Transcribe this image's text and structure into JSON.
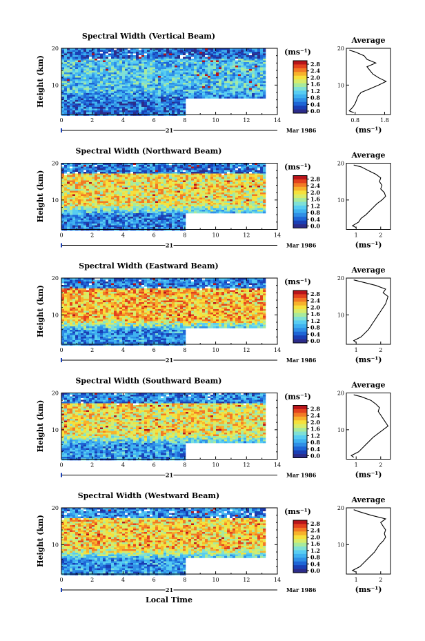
{
  "chart_data": [
    {
      "type": "heatmap",
      "title": "Spectral Width (Vertical Beam)",
      "ylabel": "Height (km)",
      "x_ticks": [
        "0",
        "2",
        "4",
        "6",
        "8",
        "10",
        "12",
        "14"
      ],
      "y_ticks": [
        "10",
        "20"
      ],
      "xlim": [
        0,
        14
      ],
      "ylim": [
        2,
        20
      ],
      "date_label": "21",
      "month_label": "Mar 1986",
      "colorbar": {
        "unit": "(ms⁻¹)",
        "ticks": [
          "2.8",
          "2.4",
          "2.0",
          "1.6",
          "1.2",
          "0.8",
          "0.4",
          "0.0"
        ]
      },
      "data_end_hours": 13.2,
      "low_gap_start_hours": 8,
      "low_gap_top_km": 6.5,
      "typical_width_low": 0.6,
      "typical_width_mid": 1.1,
      "average": {
        "title": "Average",
        "xlabel": "(ms⁻¹)",
        "x_ticks": [
          "0.8",
          "1.8"
        ],
        "xlim": [
          0.5,
          2.0
        ],
        "profile_heights": [
          2.5,
          3,
          4,
          5,
          6,
          7,
          8,
          9,
          10,
          11,
          12,
          13,
          14,
          15,
          16,
          17,
          18,
          19,
          19.5
        ],
        "profile_values": [
          0.75,
          0.6,
          0.72,
          0.8,
          0.85,
          0.9,
          1.0,
          1.3,
          1.6,
          1.85,
          1.6,
          1.4,
          1.3,
          1.2,
          1.5,
          1.2,
          1.1,
          0.8,
          0.6
        ]
      }
    },
    {
      "type": "heatmap",
      "title": "Spectral Width (Northward Beam)",
      "ylabel": "Height (km)",
      "x_ticks": [
        "0",
        "2",
        "4",
        "6",
        "8",
        "10",
        "12",
        "14"
      ],
      "y_ticks": [
        "10",
        "20"
      ],
      "xlim": [
        0,
        14
      ],
      "ylim": [
        2,
        20
      ],
      "date_label": "21",
      "month_label": "Mar 1986",
      "colorbar": {
        "unit": "(ms⁻¹)",
        "ticks": [
          "2.8",
          "2.4",
          "2.0",
          "1.6",
          "1.2",
          "0.8",
          "0.4",
          "0.0"
        ]
      },
      "data_end_hours": 13.2,
      "low_gap_start_hours": 8,
      "low_gap_top_km": 6.5,
      "typical_width_low": 0.7,
      "typical_width_mid": 2.0,
      "average": {
        "title": "Average",
        "xlabel": "(ms⁻¹)",
        "x_ticks": [
          "1",
          "2"
        ],
        "xlim": [
          0.6,
          2.4
        ],
        "profile_heights": [
          2.5,
          3,
          4,
          5,
          6,
          7,
          8,
          9,
          10,
          11,
          12,
          13,
          14,
          15,
          16,
          17,
          18,
          19,
          19.5
        ],
        "profile_values": [
          1.0,
          0.85,
          1.1,
          1.2,
          1.4,
          1.55,
          1.7,
          1.85,
          2.05,
          2.2,
          2.15,
          2.0,
          2.05,
          1.95,
          2.0,
          1.8,
          1.5,
          1.2,
          0.9
        ]
      }
    },
    {
      "type": "heatmap",
      "title": "Spectral Width (Eastward Beam)",
      "ylabel": "Height (km)",
      "x_ticks": [
        "0",
        "2",
        "4",
        "6",
        "8",
        "10",
        "12",
        "14"
      ],
      "y_ticks": [
        "10",
        "20"
      ],
      "xlim": [
        0,
        14
      ],
      "ylim": [
        2,
        20
      ],
      "date_label": "21",
      "month_label": "Mar 1986",
      "colorbar": {
        "unit": "(ms⁻¹)",
        "ticks": [
          "2.8",
          "2.4",
          "2.0",
          "1.6",
          "1.2",
          "0.8",
          "0.4",
          "0.0"
        ]
      },
      "data_end_hours": 13.2,
      "low_gap_start_hours": 8,
      "low_gap_top_km": 6.5,
      "typical_width_low": 0.8,
      "typical_width_mid": 2.2,
      "average": {
        "title": "Average",
        "xlabel": "(ms⁻¹)",
        "x_ticks": [
          "1",
          "2"
        ],
        "xlim": [
          0.6,
          2.4
        ],
        "profile_heights": [
          2.5,
          3,
          4,
          5,
          6,
          7,
          8,
          9,
          10,
          11,
          12,
          13,
          14,
          15,
          16,
          17,
          18,
          19,
          19.5
        ],
        "profile_values": [
          1.0,
          0.9,
          1.2,
          1.35,
          1.5,
          1.6,
          1.7,
          1.8,
          1.9,
          2.0,
          2.1,
          2.2,
          2.25,
          2.3,
          2.1,
          2.2,
          1.8,
          1.2,
          0.9
        ]
      }
    },
    {
      "type": "heatmap",
      "title": "Spectral Width (Southward Beam)",
      "ylabel": "Height (km)",
      "x_ticks": [
        "0",
        "2",
        "4",
        "6",
        "8",
        "10",
        "12",
        "14"
      ],
      "y_ticks": [
        "10",
        "20"
      ],
      "xlim": [
        0,
        14
      ],
      "ylim": [
        2,
        20
      ],
      "date_label": "21",
      "month_label": "Mar 1986",
      "colorbar": {
        "unit": "(ms⁻¹)",
        "ticks": [
          "2.8",
          "2.4",
          "2.0",
          "1.6",
          "1.2",
          "0.8",
          "0.4",
          "0.0"
        ]
      },
      "data_end_hours": 13.2,
      "low_gap_start_hours": 8,
      "low_gap_top_km": 6.5,
      "typical_width_low": 0.8,
      "typical_width_mid": 2.0,
      "average": {
        "title": "Average",
        "xlabel": "(ms⁻¹)",
        "x_ticks": [
          "1",
          "2"
        ],
        "xlim": [
          0.6,
          2.4
        ],
        "profile_heights": [
          2.5,
          3,
          4,
          5,
          6,
          7,
          8,
          9,
          10,
          11,
          12,
          13,
          14,
          15,
          16,
          17,
          18,
          19,
          19.5
        ],
        "profile_values": [
          0.9,
          0.8,
          1.1,
          1.25,
          1.4,
          1.55,
          1.7,
          1.9,
          2.1,
          2.3,
          2.2,
          2.1,
          2.0,
          1.9,
          1.95,
          1.8,
          1.6,
          1.2,
          0.9
        ]
      }
    },
    {
      "type": "heatmap",
      "title": "Spectral Width (Westward Beam)",
      "ylabel": "Height (km)",
      "xlabel": "Local Time",
      "x_ticks": [
        "0",
        "2",
        "4",
        "6",
        "8",
        "10",
        "12",
        "14"
      ],
      "y_ticks": [
        "10",
        "20"
      ],
      "xlim": [
        0,
        14
      ],
      "ylim": [
        2,
        20
      ],
      "date_label": "21",
      "month_label": "Mar 1986",
      "colorbar": {
        "unit": "(ms⁻¹)",
        "ticks": [
          "2.8",
          "2.4",
          "2.0",
          "1.6",
          "1.2",
          "0.8",
          "0.4",
          "0.0"
        ]
      },
      "data_end_hours": 13.2,
      "low_gap_start_hours": 8,
      "low_gap_top_km": 6.5,
      "typical_width_low": 0.8,
      "typical_width_mid": 2.1,
      "average": {
        "title": "Average",
        "xlabel": "(ms⁻¹)",
        "x_ticks": [
          "1",
          "2"
        ],
        "xlim": [
          0.6,
          2.4
        ],
        "profile_heights": [
          2.5,
          3,
          4,
          5,
          6,
          7,
          8,
          9,
          10,
          11,
          12,
          13,
          14,
          15,
          16,
          17,
          18,
          19,
          19.5
        ],
        "profile_values": [
          1.0,
          0.85,
          1.15,
          1.3,
          1.45,
          1.6,
          1.75,
          1.85,
          1.95,
          2.1,
          2.2,
          2.15,
          2.2,
          2.1,
          2.0,
          2.2,
          1.6,
          1.1,
          0.9
        ]
      }
    }
  ]
}
